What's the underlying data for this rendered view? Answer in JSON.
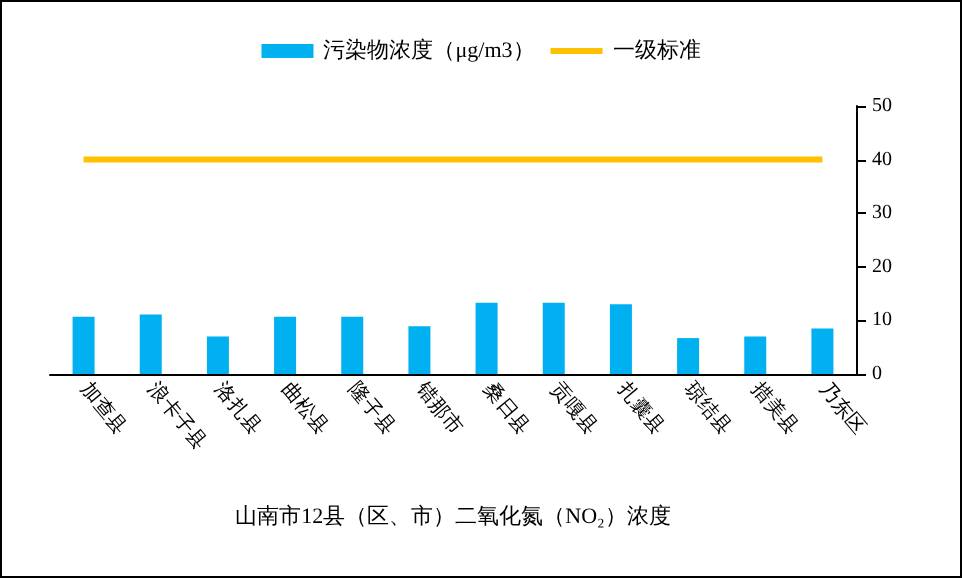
{
  "chart_data": {
    "type": "bar",
    "xlabel": "山南市12县（区、市）二氧化氮（NO₂）浓度",
    "categories": [
      "加查县",
      "浪卡子县",
      "洛扎县",
      "曲松县",
      "隆子县",
      "错那市",
      "桑日县",
      "贡嘎县",
      "扎囊县",
      "琼结县",
      "措美县",
      "乃东区"
    ],
    "series": [
      {
        "name": "污染物浓度（μg/m3）",
        "color": "#00b0f0",
        "values": [
          10.7,
          11.1,
          7,
          10.7,
          10.7,
          8.9,
          13.3,
          13.3,
          13,
          6.7,
          7,
          8.5
        ]
      },
      {
        "name": "一级标准",
        "type": "line",
        "color": "#ffc000",
        "values": [
          40,
          40,
          40,
          40,
          40,
          40,
          40,
          40,
          40,
          40,
          40,
          40
        ]
      }
    ],
    "ylim": [
      0,
      50
    ],
    "yticks": [
      0,
      10,
      20,
      30,
      40,
      50
    ],
    "grid": false,
    "legend": "top",
    "marker": "none"
  }
}
